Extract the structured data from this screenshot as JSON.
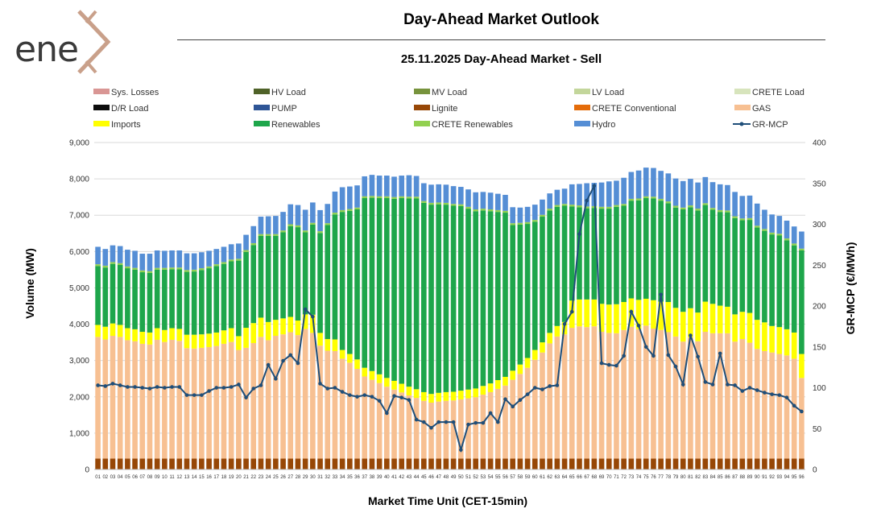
{
  "logo": {
    "text": "ene",
    "mark": "x-chevron-mark",
    "colors": {
      "text": "#3a3a3a",
      "mark": "#c9a08a"
    }
  },
  "header": {
    "title": "Day-Ahead Market Outlook",
    "subtitle": "25.11.2025  Day-Ahead Market - Sell"
  },
  "chart_data": {
    "type": "bar",
    "stacked": true,
    "title": "25.11.2025  Day-Ahead Market - Sell",
    "xlabel": "Market Time Unit (CET-15min)",
    "ylabel": "Volume (MW)",
    "y2label": "GR-MCP (€/MWh)",
    "ylim": [
      0,
      9000
    ],
    "yticks": [
      0,
      1000,
      2000,
      3000,
      4000,
      5000,
      6000,
      7000,
      8000,
      9000
    ],
    "ytick_labels": [
      "0",
      "1,000",
      "2,000",
      "3,000",
      "4,000",
      "5,000",
      "6,000",
      "7,000",
      "8,000",
      "9,000"
    ],
    "y2lim": [
      0,
      400
    ],
    "y2ticks": [
      0,
      50,
      100,
      150,
      200,
      250,
      300,
      350,
      400
    ],
    "y2tick_labels": [
      "0",
      "50",
      "100",
      "150",
      "200",
      "250",
      "300",
      "350",
      "400"
    ],
    "grid": true,
    "categories": [
      "01",
      "02",
      "03",
      "04",
      "05",
      "06",
      "07",
      "08",
      "09",
      "10",
      "11",
      "12",
      "13",
      "14",
      "15",
      "16",
      "17",
      "18",
      "19",
      "20",
      "21",
      "22",
      "23",
      "24",
      "25",
      "26",
      "27",
      "28",
      "29",
      "30",
      "31",
      "32",
      "33",
      "34",
      "35",
      "36",
      "37",
      "38",
      "39",
      "40",
      "41",
      "42",
      "43",
      "44",
      "45",
      "46",
      "47",
      "48",
      "49",
      "50",
      "51",
      "52",
      "53",
      "54",
      "55",
      "56",
      "57",
      "58",
      "59",
      "60",
      "61",
      "62",
      "63",
      "64",
      "65",
      "66",
      "67",
      "68",
      "69",
      "70",
      "71",
      "72",
      "73",
      "74",
      "75",
      "76",
      "77",
      "78",
      "79",
      "80",
      "81",
      "82",
      "83",
      "84",
      "85",
      "86",
      "87",
      "88",
      "89",
      "90",
      "91",
      "92",
      "93",
      "94",
      "95",
      "96"
    ],
    "legend": {
      "placement": "top",
      "entries": [
        {
          "name": "Sys. Losses",
          "color": "#d99694",
          "kind": "bar"
        },
        {
          "name": "HV Load",
          "color": "#4f6228",
          "kind": "bar"
        },
        {
          "name": "MV Load",
          "color": "#77933c",
          "kind": "bar"
        },
        {
          "name": "LV Load",
          "color": "#c3d69b",
          "kind": "bar"
        },
        {
          "name": "CRETE Load",
          "color": "#d7e4bc",
          "kind": "bar"
        },
        {
          "name": "D/R Load",
          "color": "#0d0d0d",
          "kind": "bar"
        },
        {
          "name": "PUMP",
          "color": "#2e5596",
          "kind": "bar"
        },
        {
          "name": "Lignite",
          "color": "#974706",
          "kind": "bar"
        },
        {
          "name": "CRETE Conventional",
          "color": "#e46c0a",
          "kind": "bar"
        },
        {
          "name": "GAS",
          "color": "#f7c092",
          "kind": "bar"
        },
        {
          "name": "Imports",
          "color": "#ffff00",
          "kind": "bar"
        },
        {
          "name": "Renewables",
          "color": "#1ea64b",
          "kind": "bar"
        },
        {
          "name": "CRETE Renewables",
          "color": "#92d050",
          "kind": "bar"
        },
        {
          "name": "Hydro",
          "color": "#558ed5",
          "kind": "bar"
        },
        {
          "name": "GR-MCP",
          "color": "#1f4e79",
          "kind": "line"
        }
      ]
    },
    "series": [
      {
        "name": "Lignite",
        "color": "#974706",
        "values": [
          300,
          300,
          300,
          300,
          300,
          300,
          300,
          300,
          300,
          300,
          300,
          300,
          300,
          300,
          300,
          300,
          300,
          300,
          300,
          300,
          300,
          300,
          300,
          300,
          300,
          300,
          300,
          300,
          300,
          300,
          300,
          300,
          300,
          300,
          300,
          300,
          300,
          300,
          300,
          300,
          300,
          300,
          300,
          300,
          300,
          300,
          300,
          300,
          300,
          300,
          300,
          300,
          300,
          300,
          300,
          300,
          300,
          300,
          300,
          300,
          300,
          300,
          300,
          300,
          300,
          300,
          300,
          300,
          300,
          300,
          300,
          300,
          300,
          300,
          300,
          300,
          300,
          300,
          300,
          300,
          300,
          300,
          300,
          300,
          300,
          300,
          300,
          300,
          300,
          300,
          300,
          300,
          300,
          300,
          300,
          300
        ]
      },
      {
        "name": "GAS",
        "color": "#f7c092",
        "values": [
          3350,
          3280,
          3380,
          3350,
          3260,
          3230,
          3160,
          3140,
          3270,
          3210,
          3270,
          3240,
          3040,
          3030,
          3050,
          3070,
          3100,
          3160,
          3210,
          2990,
          3050,
          3180,
          3350,
          3260,
          3380,
          3420,
          3480,
          3400,
          3570,
          3460,
          3110,
          2970,
          2960,
          2750,
          2640,
          2470,
          2260,
          2170,
          2080,
          1980,
          1900,
          1820,
          1740,
          1670,
          1590,
          1540,
          1570,
          1590,
          1600,
          1630,
          1660,
          1690,
          1760,
          1830,
          1920,
          2010,
          2170,
          2330,
          2500,
          2720,
          2920,
          3170,
          3360,
          3420,
          3600,
          3640,
          3620,
          3640,
          3490,
          3460,
          3450,
          3540,
          3630,
          3560,
          3660,
          3580,
          3540,
          3480,
          3360,
          3220,
          3340,
          3230,
          3490,
          3450,
          3450,
          3450,
          3220,
          3290,
          3190,
          3020,
          2960,
          2920,
          2880,
          2840,
          2750,
          2220
        ]
      },
      {
        "name": "Imports",
        "color": "#ffff00",
        "values": [
          330,
          350,
          340,
          330,
          330,
          330,
          330,
          330,
          320,
          330,
          320,
          330,
          370,
          380,
          370,
          370,
          370,
          370,
          380,
          380,
          550,
          550,
          530,
          500,
          440,
          440,
          420,
          400,
          400,
          500,
          350,
          320,
          320,
          240,
          240,
          260,
          240,
          240,
          240,
          240,
          240,
          240,
          240,
          240,
          240,
          240,
          240,
          240,
          240,
          240,
          240,
          240,
          240,
          240,
          240,
          240,
          250,
          260,
          270,
          270,
          280,
          290,
          290,
          340,
          750,
          740,
          760,
          740,
          770,
          780,
          800,
          770,
          780,
          810,
          740,
          780,
          780,
          830,
          790,
          820,
          800,
          790,
          830,
          810,
          760,
          730,
          750,
          750,
          820,
          800,
          790,
          730,
          740,
          720,
          720,
          660
        ]
      },
      {
        "name": "Renewables",
        "color": "#1ea64b",
        "values": [
          1620,
          1630,
          1640,
          1650,
          1650,
          1640,
          1640,
          1640,
          1610,
          1660,
          1620,
          1640,
          1730,
          1740,
          1770,
          1800,
          1830,
          1830,
          1840,
          2080,
          2090,
          2150,
          2250,
          2370,
          2310,
          2370,
          2500,
          2570,
          2260,
          2480,
          2750,
          3140,
          3440,
          3800,
          3940,
          4130,
          4670,
          4770,
          4850,
          4950,
          5010,
          5110,
          5180,
          5250,
          5210,
          5210,
          5190,
          5160,
          5120,
          5080,
          4980,
          4880,
          4830,
          4740,
          4630,
          4520,
          4010,
          3850,
          3690,
          3530,
          3460,
          3370,
          3280,
          3200,
          2590,
          2540,
          2510,
          2520,
          2620,
          2640,
          2680,
          2650,
          2690,
          2740,
          2770,
          2800,
          2780,
          2720,
          2760,
          2820,
          2780,
          2810,
          2660,
          2590,
          2580,
          2600,
          2650,
          2520,
          2560,
          2540,
          2520,
          2520,
          2520,
          2450,
          2400,
          2850
        ]
      },
      {
        "name": "CRETE Renewables",
        "color": "#92d050",
        "values": [
          50,
          50,
          50,
          50,
          50,
          50,
          50,
          50,
          50,
          50,
          50,
          50,
          50,
          50,
          50,
          50,
          50,
          50,
          50,
          50,
          50,
          50,
          50,
          50,
          50,
          50,
          50,
          50,
          50,
          50,
          50,
          50,
          50,
          50,
          50,
          50,
          50,
          50,
          50,
          50,
          50,
          50,
          50,
          50,
          50,
          50,
          50,
          50,
          50,
          50,
          50,
          50,
          50,
          50,
          50,
          50,
          50,
          50,
          50,
          50,
          50,
          50,
          50,
          50,
          50,
          50,
          50,
          50,
          50,
          50,
          50,
          50,
          50,
          50,
          50,
          50,
          50,
          50,
          50,
          50,
          50,
          50,
          50,
          50,
          50,
          50,
          50,
          50,
          50,
          50,
          50,
          50,
          50,
          50,
          50,
          50
        ]
      },
      {
        "name": "Hydro",
        "color": "#558ed5",
        "values": [
          480,
          460,
          460,
          470,
          460,
          470,
          460,
          480,
          480,
          470,
          470,
          470,
          460,
          450,
          440,
          430,
          420,
          420,
          420,
          420,
          420,
          470,
          480,
          490,
          500,
          510,
          550,
          560,
          570,
          560,
          580,
          530,
          580,
          630,
          620,
          610,
          550,
          580,
          570,
          570,
          560,
          570,
          590,
          570,
          490,
          500,
          500,
          500,
          490,
          480,
          480,
          470,
          460,
          460,
          450,
          440,
          440,
          420,
          420,
          420,
          420,
          420,
          420,
          420,
          560,
          590,
          640,
          640,
          670,
          700,
          670,
          720,
          740,
          770,
          790,
          790,
          770,
          770,
          750,
          730,
          730,
          720,
          720,
          710,
          710,
          700,
          670,
          620,
          620,
          610,
          530,
          500,
          490,
          490,
          470,
          470
        ]
      }
    ],
    "line": {
      "name": "GR-MCP",
      "color": "#1f4e79",
      "axis": "right",
      "values": [
        103,
        102,
        105,
        103,
        101,
        101,
        100,
        99,
        101,
        100,
        101,
        101,
        91,
        91,
        91,
        96,
        100,
        100,
        101,
        104,
        88,
        99,
        103,
        128,
        111,
        133,
        140,
        130,
        196,
        187,
        105,
        99,
        100,
        95,
        91,
        89,
        91,
        89,
        84,
        69,
        90,
        88,
        85,
        61,
        58,
        51,
        58,
        58,
        58,
        24,
        55,
        57,
        57,
        69,
        58,
        86,
        77,
        85,
        92,
        100,
        98,
        102,
        103,
        178,
        193,
        288,
        329,
        347,
        130,
        128,
        127,
        139,
        193,
        176,
        150,
        139,
        214,
        140,
        126,
        104,
        164,
        138,
        107,
        104,
        142,
        104,
        103,
        96,
        100,
        97,
        94,
        92,
        91,
        88,
        78,
        71
      ]
    }
  },
  "colors": {
    "title_rule": "#444444",
    "grid": "#d9d9d9",
    "axis_text": "#333333"
  }
}
